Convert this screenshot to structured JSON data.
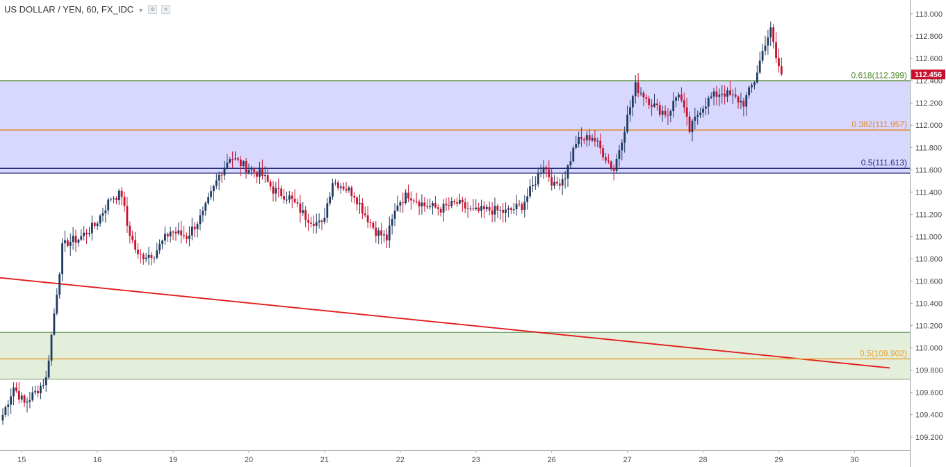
{
  "header": {
    "title": "US DOLLAR / YEN, 60, FX_IDC"
  },
  "colors": {
    "up": "#1f3a60",
    "down": "#c8102e",
    "zone_upper": "#d8d8ff",
    "zone_lower": "#e3eedb",
    "trendline": "#e31b1b",
    "fib_618": "#4f8a2a",
    "fib_382": "#e08a2b",
    "fib_5_upper": "#262e7a",
    "fib_5_lower": "#e8a33a"
  },
  "chart_data": {
    "type": "candlestick",
    "symbol": "US DOLLAR / YEN",
    "interval": "60",
    "source": "FX_IDC",
    "ylim": [
      109.08,
      113.1
    ],
    "y_ticks": [
      "113.000",
      "112.800",
      "112.600",
      "112.400",
      "112.200",
      "112.000",
      "111.800",
      "111.600",
      "111.400",
      "111.200",
      "111.000",
      "110.800",
      "110.600",
      "110.400",
      "110.200",
      "110.000",
      "109.800",
      "109.600",
      "109.400",
      "109.200"
    ],
    "x_ticks": [
      "15",
      "16",
      "19",
      "20",
      "21",
      "22",
      "23",
      "26",
      "27",
      "28",
      "29",
      "30"
    ],
    "last_price": "112.456",
    "levels": [
      {
        "label": "0.618(112.399)",
        "value": 112.399,
        "color": "#4f8a2a"
      },
      {
        "label": "0.382(111.957)",
        "value": 111.957,
        "color": "#e08a2b"
      },
      {
        "label": "0.5(111.613)",
        "value": 111.613,
        "color": "#262e7a"
      },
      {
        "label": "0.5(109.902)",
        "value": 109.902,
        "color": "#e8a33a"
      }
    ],
    "zones": [
      {
        "from": 111.57,
        "to": 112.399,
        "color": "#d8d8ff"
      },
      {
        "from": 109.72,
        "to": 110.14,
        "color": "#e3eedb"
      }
    ],
    "trendline": {
      "from": {
        "index": 0,
        "value": 110.63
      },
      "to": {
        "index": 327,
        "value": 109.82
      }
    },
    "anchors": [
      [
        0,
        109.4
      ],
      [
        4,
        109.65
      ],
      [
        8,
        109.5
      ],
      [
        12,
        109.6
      ],
      [
        16,
        109.72
      ],
      [
        22,
        110.9
      ],
      [
        24,
        110.95
      ],
      [
        28,
        110.98
      ],
      [
        34,
        111.1
      ],
      [
        40,
        111.35
      ],
      [
        44,
        111.38
      ],
      [
        46,
        111.1
      ],
      [
        50,
        110.82
      ],
      [
        56,
        110.85
      ],
      [
        62,
        111.05
      ],
      [
        68,
        111.0
      ],
      [
        74,
        111.2
      ],
      [
        80,
        111.55
      ],
      [
        84,
        111.72
      ],
      [
        90,
        111.62
      ],
      [
        96,
        111.55
      ],
      [
        100,
        111.42
      ],
      [
        106,
        111.35
      ],
      [
        112,
        111.18
      ],
      [
        118,
        111.1
      ],
      [
        122,
        111.5
      ],
      [
        126,
        111.45
      ],
      [
        130,
        111.38
      ],
      [
        134,
        111.2
      ],
      [
        138,
        111.05
      ],
      [
        142,
        110.98
      ],
      [
        146,
        111.3
      ],
      [
        150,
        111.38
      ],
      [
        156,
        111.28
      ],
      [
        162,
        111.25
      ],
      [
        168,
        111.3
      ],
      [
        174,
        111.22
      ],
      [
        180,
        111.24
      ],
      [
        186,
        111.22
      ],
      [
        192,
        111.28
      ],
      [
        196,
        111.45
      ],
      [
        200,
        111.65
      ],
      [
        204,
        111.45
      ],
      [
        208,
        111.55
      ],
      [
        212,
        111.85
      ],
      [
        218,
        111.9
      ],
      [
        222,
        111.75
      ],
      [
        226,
        111.6
      ],
      [
        230,
        111.98
      ],
      [
        234,
        112.35
      ],
      [
        238,
        112.25
      ],
      [
        242,
        112.15
      ],
      [
        246,
        112.1
      ],
      [
        250,
        112.3
      ],
      [
        254,
        111.95
      ],
      [
        258,
        112.15
      ],
      [
        262,
        112.25
      ],
      [
        266,
        112.3
      ],
      [
        270,
        112.25
      ],
      [
        274,
        112.2
      ],
      [
        278,
        112.4
      ],
      [
        282,
        112.75
      ],
      [
        284,
        112.85
      ],
      [
        286,
        112.6
      ],
      [
        288,
        112.456
      ]
    ]
  }
}
